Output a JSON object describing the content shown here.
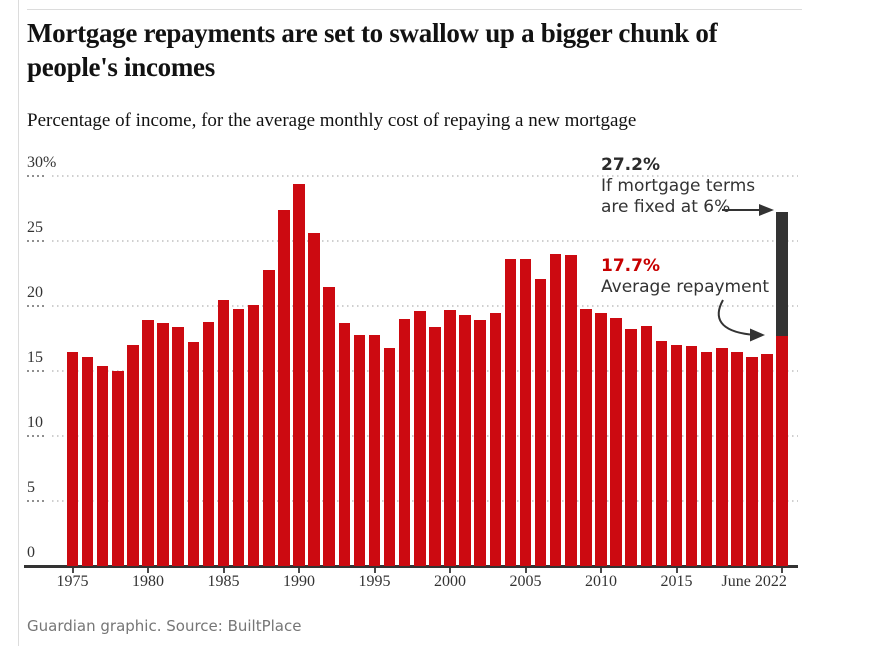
{
  "colors": {
    "bar_red": "#cc0a11",
    "bar_dark": "#333333",
    "accent_red": "#c70000",
    "text_dark": "#121212",
    "text_gray": "#767676",
    "grid_light": "#cfcfcf",
    "grid_dark": "#8f8f8f"
  },
  "chart_data": {
    "type": "bar",
    "title": "Mortgage repayments are set to swallow up a bigger chunk of\npeople's incomes",
    "subtitle": "Percentage of income, for the average monthly cost of repaying a new mortgage",
    "source": "Guardian graphic. Source: BuiltPlace",
    "categories": [
      "1975",
      "1976",
      "1977",
      "1978",
      "1979",
      "1980",
      "1981",
      "1982",
      "1983",
      "1984",
      "1985",
      "1986",
      "1987",
      "1988",
      "1989",
      "1990",
      "1991",
      "1992",
      "1993",
      "1994",
      "1995",
      "1996",
      "1997",
      "1998",
      "1999",
      "2000",
      "2001",
      "2002",
      "2003",
      "2004",
      "2005",
      "2006",
      "2007",
      "2008",
      "2009",
      "2010",
      "2011",
      "2012",
      "2013",
      "2014",
      "2015",
      "2016",
      "2017",
      "2018",
      "2019",
      "2020",
      "2021",
      "June 2022"
    ],
    "values": [
      16.5,
      16.1,
      15.4,
      15.0,
      17.0,
      18.9,
      18.7,
      18.4,
      17.2,
      18.8,
      20.5,
      19.8,
      20.1,
      22.8,
      27.4,
      29.4,
      25.6,
      21.5,
      18.7,
      17.8,
      17.8,
      16.8,
      19.0,
      19.6,
      18.4,
      19.7,
      19.3,
      18.9,
      19.5,
      23.6,
      23.6,
      22.1,
      24.0,
      23.9,
      19.8,
      19.5,
      19.1,
      18.2,
      18.5,
      17.3,
      17.0,
      16.9,
      16.5,
      16.8,
      16.5,
      16.1,
      16.3,
      17.7
    ],
    "final_bar": {
      "category": "June 2022",
      "average_value": 17.7,
      "fixed_scenario_value": 27.2
    },
    "ylim": [
      0,
      30
    ],
    "ytick_values": [
      30,
      25,
      20,
      15,
      10,
      5,
      0
    ],
    "ytick_labels": [
      "30%",
      "25",
      "20",
      "15",
      "10",
      "5",
      "0"
    ],
    "xtick_labels": [
      "1975",
      "1980",
      "1985",
      "1990",
      "1995",
      "2000",
      "2005",
      "2010",
      "2015",
      "June 2022"
    ],
    "grid": true,
    "legend": "none",
    "annotations": {
      "fixed": {
        "value": "27.2%",
        "line1": "If mortgage terms",
        "line2": "are fixed at 6%"
      },
      "average": {
        "value": "17.7%",
        "label": "Average repayment"
      }
    }
  }
}
